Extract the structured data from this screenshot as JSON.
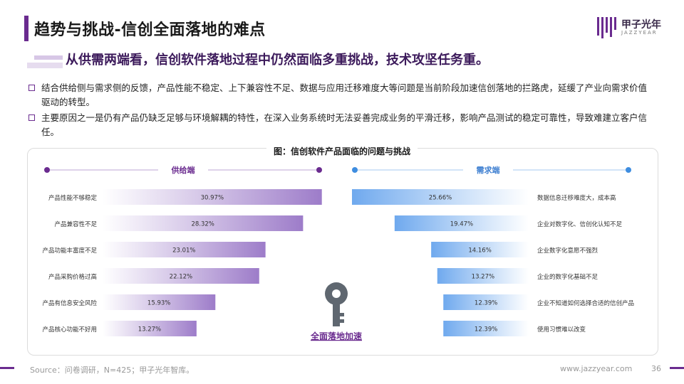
{
  "header": {
    "title": "趋势与挑战-信创全面落地的难点",
    "logo_text": "甲子光年",
    "logo_sub": "JAZZYEAR"
  },
  "subheading": "从供需两端看，信创软件落地过程中仍然面临多重挑战，技术攻坚任务重。",
  "bullets": [
    "结合供给侧与需求侧的反馈，产品性能不稳定、上下兼容性不足、数据与应用迁移难度大等问题是当前阶段加速信创落地的拦路虎，延缓了产业向需求价值驱动的转型。",
    "主要原因之一是仍有产品仍缺乏足够与环境解耦的特性，在深入业务系统时无法妥善完成业务的平滑迁移，影响产品测试的稳定可靠性，导致难建立客户信任。"
  ],
  "center_label": "全面落地加速",
  "footer": {
    "source": "Source：问卷调研，N=425；甲子光年智库。",
    "website": "www.jazzyear.com",
    "page": "36"
  },
  "colors": {
    "accent": "#6a2b8f",
    "supply_bar": "#9d7cc9",
    "demand_bar": "#6fa9ee",
    "supply_dot": "#6a2b8f",
    "demand_dot": "#3e8de0"
  },
  "chart_data": [
    {
      "type": "bar",
      "orientation": "horizontal",
      "title": "图：信创软件产品面临的问题与挑战",
      "series_label": "供给端",
      "categories": [
        "产品性能不够稳定",
        "产品兼容性不足",
        "产品功能丰富度不足",
        "产品采购价格过高",
        "产品有信息安全风险",
        "产品核心功能不好用"
      ],
      "values": [
        30.97,
        28.32,
        23.01,
        22.12,
        15.93,
        13.27
      ],
      "value_labels": [
        "30.97%",
        "28.32%",
        "23.01%",
        "22.12%",
        "15.93%",
        "13.27%"
      ],
      "unit": "%",
      "bar_direction": "left-to-right"
    },
    {
      "type": "bar",
      "orientation": "horizontal",
      "series_label": "需求端",
      "categories": [
        "数据信息迁移难度大，成本高",
        "企业对数字化、信创化认知不足",
        "企业数字化意愿不强烈",
        "企业的数字化基础不足",
        "企业不知道如何选择合适的信创产品",
        "使用习惯难以改变"
      ],
      "values": [
        25.66,
        19.47,
        14.16,
        13.27,
        12.39,
        12.39
      ],
      "value_labels": [
        "25.66%",
        "19.47%",
        "14.16%",
        "13.27%",
        "12.39%",
        "12.39%"
      ],
      "unit": "%",
      "bar_direction": "right-to-left"
    }
  ]
}
